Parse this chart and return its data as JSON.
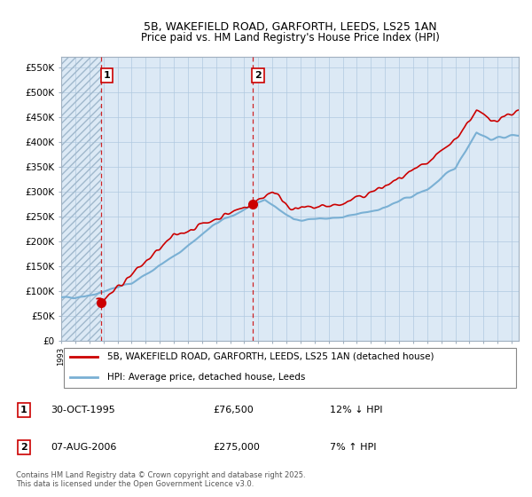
{
  "title_line1": "5B, WAKEFIELD ROAD, GARFORTH, LEEDS, LS25 1AN",
  "title_line2": "Price paid vs. HM Land Registry's House Price Index (HPI)",
  "legend_line1": "5B, WAKEFIELD ROAD, GARFORTH, LEEDS, LS25 1AN (detached house)",
  "legend_line2": "HPI: Average price, detached house, Leeds",
  "annotation1_date": "30-OCT-1995",
  "annotation1_price": "£76,500",
  "annotation1_hpi": "12% ↓ HPI",
  "annotation2_date": "07-AUG-2006",
  "annotation2_price": "£275,000",
  "annotation2_hpi": "7% ↑ HPI",
  "footer": "Contains HM Land Registry data © Crown copyright and database right 2025.\nThis data is licensed under the Open Government Licence v3.0.",
  "xmin": 1993.0,
  "xmax": 2025.5,
  "ymin": 0,
  "ymax": 570000,
  "yticks": [
    0,
    50000,
    100000,
    150000,
    200000,
    250000,
    300000,
    350000,
    400000,
    450000,
    500000,
    550000
  ],
  "ytick_labels": [
    "£0",
    "£50K",
    "£100K",
    "£150K",
    "£200K",
    "£250K",
    "£300K",
    "£350K",
    "£400K",
    "£450K",
    "£500K",
    "£550K"
  ],
  "sale1_x": 1995.83,
  "sale1_y": 76500,
  "sale2_x": 2006.58,
  "sale2_y": 275000,
  "line_color_red": "#cc0000",
  "line_color_blue": "#7ab0d4",
  "bg_color": "#dce9f5",
  "hatch_region_end": 1995.83,
  "vline_color": "#cc0000",
  "grid_color": "#b0c8e0"
}
